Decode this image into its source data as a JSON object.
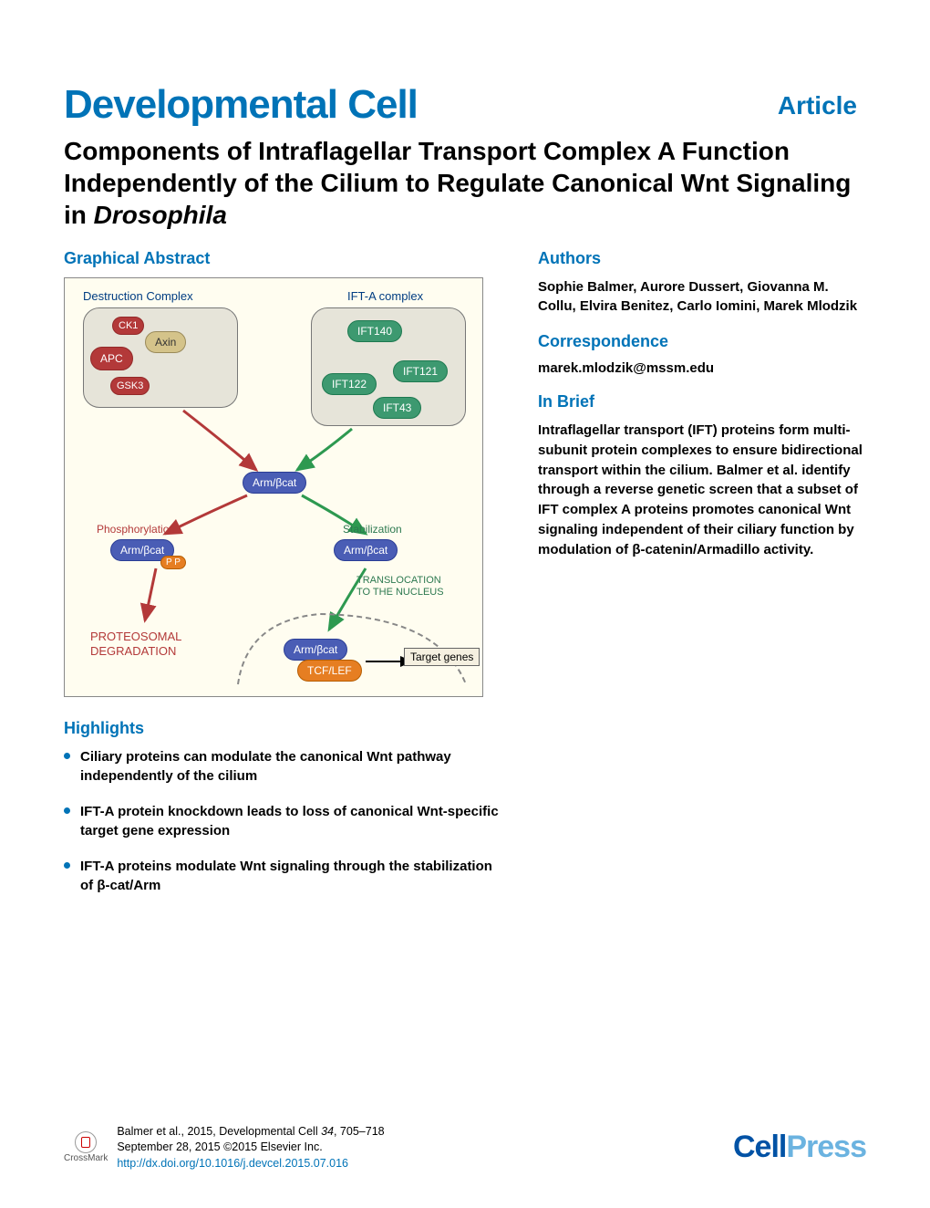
{
  "header": {
    "article_label": "Article",
    "journal_name": "Developmental Cell",
    "title_html": "Components of Intraflagellar Transport Complex A Function Independently of the Cilium to Regulate Canonical Wnt Signaling in <em>Drosophila</em>"
  },
  "sections": {
    "graphical_abstract_heading": "Graphical Abstract",
    "authors_heading": "Authors",
    "correspondence_heading": "Correspondence",
    "inbrief_heading": "In Brief",
    "highlights_heading": "Highlights"
  },
  "authors": "Sophie Balmer, Aurore Dussert, Giovanna M. Collu, Elvira Benitez, Carlo Iomini, Marek Mlodzik",
  "correspondence": "marek.mlodzik@mssm.edu",
  "inbrief": "Intraflagellar transport (IFT) proteins form multi-subunit protein complexes to ensure bidirectional transport within the cilium. Balmer et al. identify through a reverse genetic screen that a subset of IFT complex A proteins promotes canonical Wnt signaling independent of their ciliary function by modulation of β-catenin/Armadillo activity.",
  "highlights": [
    "Ciliary proteins can modulate the canonical Wnt pathway independently of the cilium",
    "IFT-A protein knockdown leads to loss of canonical Wnt-specific target gene expression",
    "IFT-A proteins modulate Wnt signaling through the stabilization of β-cat/Arm"
  ],
  "graphical_abstract": {
    "background_color": "#fffdf0",
    "destruction_complex": {
      "label": "Destruction Complex",
      "label_color": "#003d82",
      "box_color": "#e6e4d9",
      "components": {
        "ck1": "CK1",
        "axin": "Axin",
        "apc": "APC",
        "gsk3": "GSK3"
      }
    },
    "ifta_complex": {
      "label": "IFT-A complex",
      "label_color": "#003d82",
      "box_color": "#e6e4d9",
      "components": {
        "ift140": "IFT140",
        "ift121": "IFT121",
        "ift122": "IFT122",
        "ift43": "IFT43"
      }
    },
    "center_bcat": "Arm/βcat",
    "left_path": {
      "label": "Phosphorylation",
      "label_color": "#b33939",
      "bcat": "Arm/βcat",
      "pp": "P P",
      "outcome": "PROTEOSOMAL DEGRADATION",
      "outcome_color": "#b33939"
    },
    "right_path": {
      "label": "Stabilization",
      "label_color": "#2d7950",
      "bcat": "Arm/βcat",
      "translocation": "TRANSLOCATION TO THE NUCLEUS",
      "translocation_color": "#2d7950",
      "nucleus_bcat": "Arm/βcat",
      "tcf": "TCF/LEF",
      "target": "Target genes"
    },
    "colors": {
      "arrow_red": "#b33939",
      "arrow_green": "#2d9950",
      "pill_blue": "#4a5db5",
      "pill_green": "#3d9970",
      "pill_red": "#b33939",
      "pill_beige": "#d4c38a",
      "pill_orange": "#e67e22",
      "nucleus_outline": "#888"
    }
  },
  "footer": {
    "crossmark_label": "CrossMark",
    "citation_line1": "Balmer et al., 2015, Developmental Cell 34, 705–718",
    "citation_line2": "September 28, 2015 ©2015 Elsevier Inc.",
    "doi": "http://dx.doi.org/10.1016/j.devcel.2015.07.016",
    "cellpress_cell": "Cell",
    "cellpress_press": "Press"
  }
}
